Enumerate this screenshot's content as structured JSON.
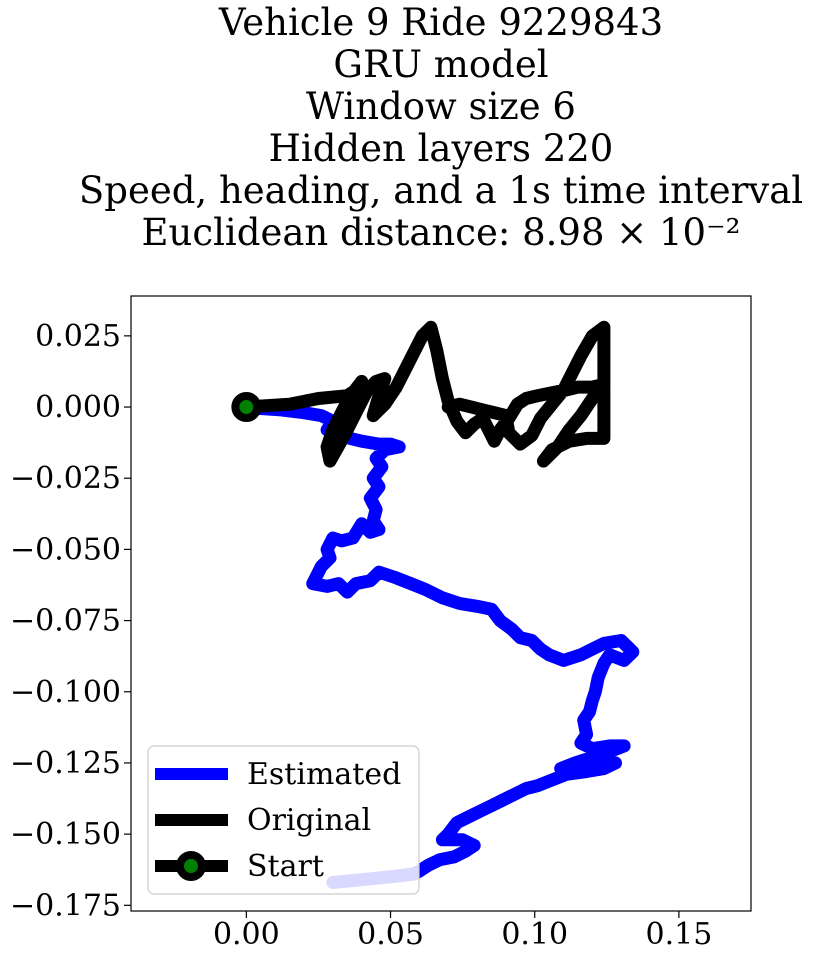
{
  "chart_data": {
    "type": "line",
    "title_lines": [
      "Vehicle 9 Ride 9229843",
      "GRU model",
      "Window size 6",
      "Hidden layers 220",
      "Speed, heading, and a 1s time interval",
      "Euclidean distance: 8.98 × 10⁻²"
    ],
    "xlabel": "",
    "ylabel": "",
    "xlim": [
      -0.04,
      0.175
    ],
    "ylim": [
      -0.177,
      0.039
    ],
    "xticks": [
      0.0,
      0.05,
      0.1,
      0.15
    ],
    "xtick_labels": [
      "0.00",
      "0.05",
      "0.10",
      "0.15"
    ],
    "yticks": [
      0.025,
      0.0,
      -0.025,
      -0.05,
      -0.075,
      -0.1,
      -0.125,
      -0.15,
      -0.175
    ],
    "ytick_labels": [
      "0.025",
      "0.000",
      "−0.025",
      "−0.050",
      "−0.075",
      "−0.100",
      "−0.125",
      "−0.150",
      "−0.175"
    ],
    "grid": false,
    "legend_placement": "lower-left",
    "series": [
      {
        "name": "Estimated",
        "color": "#0000ff",
        "points": [
          [
            0.0,
            0.0
          ],
          [
            0.005,
            -0.0005
          ],
          [
            0.012,
            -0.001
          ],
          [
            0.02,
            -0.002
          ],
          [
            0.026,
            -0.003
          ],
          [
            0.03,
            -0.005
          ],
          [
            0.028,
            -0.008
          ],
          [
            0.033,
            -0.009
          ],
          [
            0.036,
            -0.011
          ],
          [
            0.04,
            -0.012
          ],
          [
            0.046,
            -0.013
          ],
          [
            0.05,
            -0.013
          ],
          [
            0.053,
            -0.014
          ],
          [
            0.048,
            -0.015
          ],
          [
            0.045,
            -0.018
          ],
          [
            0.047,
            -0.021
          ],
          [
            0.044,
            -0.025
          ],
          [
            0.046,
            -0.028
          ],
          [
            0.043,
            -0.032
          ],
          [
            0.045,
            -0.036
          ],
          [
            0.044,
            -0.04
          ],
          [
            0.046,
            -0.043
          ],
          [
            0.043,
            -0.044
          ],
          [
            0.04,
            -0.041
          ],
          [
            0.037,
            -0.046
          ],
          [
            0.033,
            -0.047
          ],
          [
            0.03,
            -0.046
          ],
          [
            0.028,
            -0.05
          ],
          [
            0.029,
            -0.053
          ],
          [
            0.026,
            -0.056
          ],
          [
            0.024,
            -0.06
          ],
          [
            0.023,
            -0.062
          ],
          [
            0.028,
            -0.063
          ],
          [
            0.032,
            -0.062
          ],
          [
            0.035,
            -0.065
          ],
          [
            0.038,
            -0.062
          ],
          [
            0.043,
            -0.061
          ],
          [
            0.046,
            -0.058
          ],
          [
            0.049,
            -0.059
          ],
          [
            0.052,
            -0.06
          ],
          [
            0.057,
            -0.062
          ],
          [
            0.062,
            -0.064
          ],
          [
            0.068,
            -0.067
          ],
          [
            0.074,
            -0.069
          ],
          [
            0.08,
            -0.07
          ],
          [
            0.085,
            -0.071
          ],
          [
            0.088,
            -0.075
          ],
          [
            0.092,
            -0.078
          ],
          [
            0.095,
            -0.081
          ],
          [
            0.099,
            -0.082
          ],
          [
            0.102,
            -0.085
          ],
          [
            0.105,
            -0.087
          ],
          [
            0.11,
            -0.089
          ],
          [
            0.116,
            -0.087
          ],
          [
            0.12,
            -0.085
          ],
          [
            0.124,
            -0.083
          ],
          [
            0.13,
            -0.082
          ],
          [
            0.134,
            -0.086
          ],
          [
            0.131,
            -0.089
          ],
          [
            0.126,
            -0.087
          ],
          [
            0.124,
            -0.09
          ],
          [
            0.122,
            -0.095
          ],
          [
            0.121,
            -0.1
          ],
          [
            0.12,
            -0.103
          ],
          [
            0.119,
            -0.107
          ],
          [
            0.117,
            -0.11
          ],
          [
            0.118,
            -0.115
          ],
          [
            0.116,
            -0.118
          ],
          [
            0.12,
            -0.12
          ],
          [
            0.126,
            -0.119
          ],
          [
            0.131,
            -0.119
          ],
          [
            0.126,
            -0.121
          ],
          [
            0.12,
            -0.123
          ],
          [
            0.114,
            -0.125
          ],
          [
            0.109,
            -0.127
          ],
          [
            0.115,
            -0.126
          ],
          [
            0.122,
            -0.124
          ],
          [
            0.128,
            -0.125
          ],
          [
            0.124,
            -0.127
          ],
          [
            0.118,
            -0.128
          ],
          [
            0.111,
            -0.129
          ],
          [
            0.106,
            -0.131
          ],
          [
            0.101,
            -0.133
          ],
          [
            0.097,
            -0.134
          ],
          [
            0.093,
            -0.136
          ],
          [
            0.089,
            -0.138
          ],
          [
            0.085,
            -0.14
          ],
          [
            0.081,
            -0.142
          ],
          [
            0.077,
            -0.144
          ],
          [
            0.073,
            -0.146
          ],
          [
            0.07,
            -0.15
          ],
          [
            0.068,
            -0.152
          ],
          [
            0.075,
            -0.152
          ],
          [
            0.079,
            -0.154
          ],
          [
            0.076,
            -0.156
          ],
          [
            0.072,
            -0.158
          ],
          [
            0.067,
            -0.159
          ],
          [
            0.063,
            -0.161
          ],
          [
            0.06,
            -0.163
          ],
          [
            0.058,
            -0.164
          ],
          [
            0.05,
            -0.165
          ],
          [
            0.04,
            -0.166
          ],
          [
            0.03,
            -0.167
          ]
        ]
      },
      {
        "name": "Original",
        "color": "#000000",
        "points": [
          [
            0.0,
            0.0
          ],
          [
            0.015,
            0.001
          ],
          [
            0.025,
            0.003
          ],
          [
            0.035,
            0.004
          ],
          [
            0.038,
            0.006
          ],
          [
            0.04,
            0.009
          ],
          [
            0.037,
            0.005
          ],
          [
            0.034,
            0.0
          ],
          [
            0.03,
            -0.008
          ],
          [
            0.028,
            -0.014
          ],
          [
            0.029,
            -0.019
          ],
          [
            0.034,
            -0.01
          ],
          [
            0.039,
            0.0
          ],
          [
            0.042,
            0.006
          ],
          [
            0.045,
            0.009
          ],
          [
            0.048,
            0.01
          ],
          [
            0.046,
            0.004
          ],
          [
            0.044,
            -0.003
          ],
          [
            0.048,
            0.001
          ],
          [
            0.052,
            0.007
          ],
          [
            0.055,
            0.013
          ],
          [
            0.058,
            0.019
          ],
          [
            0.061,
            0.025
          ],
          [
            0.064,
            0.028
          ],
          [
            0.066,
            0.02
          ],
          [
            0.068,
            0.01
          ],
          [
            0.07,
            0.002
          ],
          [
            0.073,
            -0.005
          ],
          [
            0.076,
            -0.009
          ],
          [
            0.079,
            -0.006
          ],
          [
            0.082,
            -0.004
          ],
          [
            0.084,
            -0.008
          ],
          [
            0.086,
            -0.012
          ],
          [
            0.088,
            -0.008
          ],
          [
            0.091,
            -0.004
          ],
          [
            0.094,
            0.001
          ],
          [
            0.097,
            0.003
          ],
          [
            0.101,
            0.004
          ],
          [
            0.106,
            0.005
          ],
          [
            0.111,
            0.006
          ],
          [
            0.115,
            0.007
          ],
          [
            0.12,
            0.007
          ],
          [
            0.124,
            0.008
          ],
          [
            0.12,
            0.003
          ],
          [
            0.116,
            -0.003
          ],
          [
            0.112,
            -0.008
          ],
          [
            0.108,
            -0.014
          ],
          [
            0.103,
            -0.019
          ],
          [
            0.106,
            -0.015
          ],
          [
            0.112,
            -0.012
          ],
          [
            0.118,
            -0.011
          ],
          [
            0.124,
            -0.011
          ],
          [
            0.124,
            -0.003
          ],
          [
            0.124,
            0.004
          ],
          [
            0.124,
            0.012
          ],
          [
            0.124,
            0.02
          ],
          [
            0.124,
            0.028
          ],
          [
            0.12,
            0.025
          ],
          [
            0.116,
            0.018
          ],
          [
            0.113,
            0.012
          ],
          [
            0.11,
            0.006
          ],
          [
            0.106,
            0.001
          ],
          [
            0.102,
            -0.004
          ],
          [
            0.099,
            -0.01
          ],
          [
            0.095,
            -0.013
          ],
          [
            0.091,
            -0.009
          ],
          [
            0.09,
            -0.003
          ],
          [
            0.086,
            -0.002
          ],
          [
            0.082,
            -0.001
          ],
          [
            0.078,
            0.0
          ],
          [
            0.074,
            0.001
          ],
          [
            0.07,
            0.0
          ]
        ]
      }
    ],
    "start_point": {
      "name": "Start",
      "x": 0.0,
      "y": 0.0,
      "fill": "#008000",
      "edge": "#000000"
    },
    "extra_trace": {
      "color": "#c8c8ff",
      "points": [
        [
          0.03,
          -0.167
        ],
        [
          0.045,
          -0.1655
        ],
        [
          0.06,
          -0.164
        ]
      ]
    }
  }
}
